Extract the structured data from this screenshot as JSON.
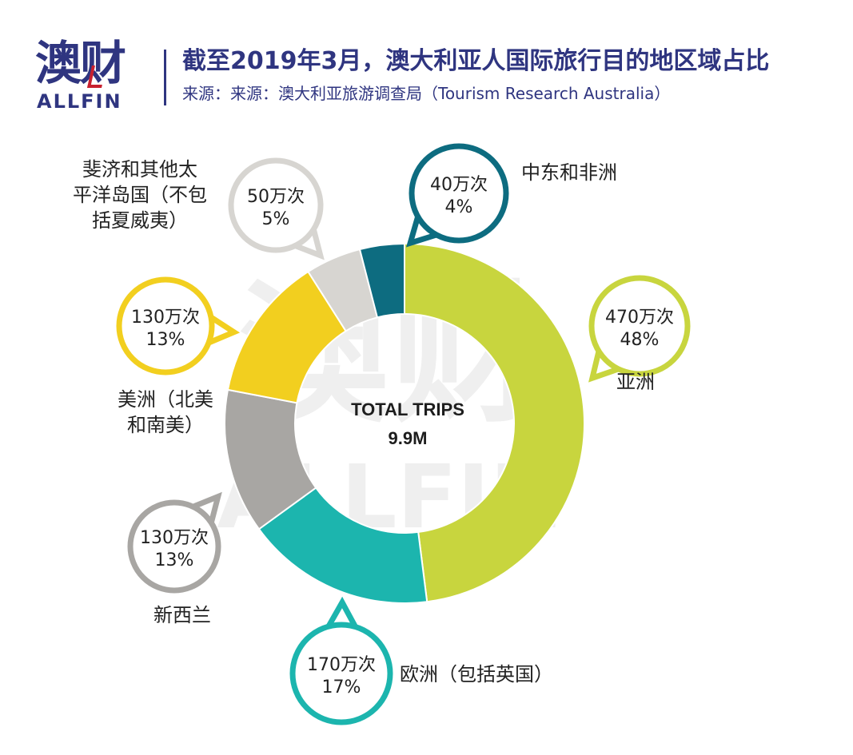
{
  "header": {
    "logo_cn": "澳财",
    "logo_en": "ALLFIN",
    "title": "截至2019年3月，澳大利亚人国际旅行目的地区域占比",
    "source": "来源：来源：澳大利亚旅游调查局（Tourism Research Australia）"
  },
  "watermark": {
    "cn": "澳财",
    "en": "ALLFIN"
  },
  "chart_data": {
    "type": "pie",
    "title": "截至2019年3月，澳大利亚人国际旅行目的地区域占比",
    "total_label": "TOTAL TRIPS",
    "total_value": "9.9M",
    "slices": [
      {
        "name": "亚洲",
        "name_lines": [
          "亚洲"
        ],
        "trips": "470万次",
        "percent_text": "48%",
        "percent": 48,
        "color": "#c8d53e"
      },
      {
        "name": "欧洲（包括英国）",
        "name_lines": [
          "欧洲（包括英国）"
        ],
        "trips": "170万次",
        "percent_text": "17%",
        "percent": 17,
        "color": "#1cb5ae"
      },
      {
        "name": "新西兰",
        "name_lines": [
          "新西兰"
        ],
        "trips": "130万次",
        "percent_text": "13%",
        "percent": 13,
        "color": "#a8a6a3"
      },
      {
        "name": "美洲（北美和南美）",
        "name_lines": [
          "美洲（北美",
          "和南美）"
        ],
        "trips": "130万次",
        "percent_text": "13%",
        "percent": 13,
        "color": "#f2cf1f"
      },
      {
        "name": "斐济和其他太平洋岛国（不包括夏威夷）",
        "name_lines": [
          "斐济和其他太",
          "平洋岛国（不包",
          "括夏威夷）"
        ],
        "trips": "50万次",
        "percent_text": "5%",
        "percent": 5,
        "color": "#d7d5d1"
      },
      {
        "name": "中东和非洲",
        "name_lines": [
          "中东和非洲"
        ],
        "trips": "40万次",
        "percent_text": "4%",
        "percent": 4,
        "color": "#0d6c80"
      }
    ]
  }
}
